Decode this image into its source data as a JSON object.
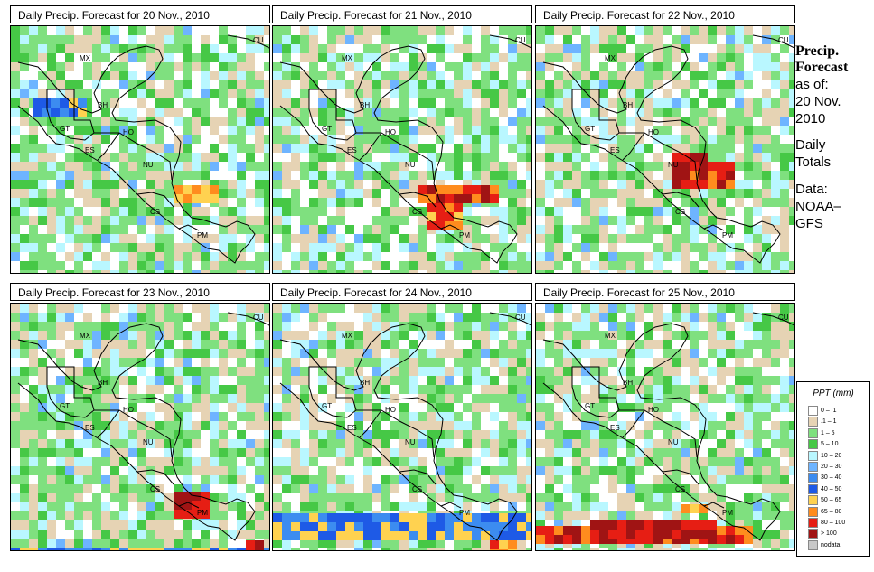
{
  "panels": [
    {
      "title": "Daily Precip. Forecast for  20 Nov., 2010"
    },
    {
      "title": "Daily Precip. Forecast for  21 Nov., 2010"
    },
    {
      "title": "Daily Precip. Forecast for  22 Nov., 2010"
    },
    {
      "title": "Daily Precip. Forecast for  23 Nov., 2010"
    },
    {
      "title": "Daily Precip. Forecast for  24 Nov., 2010"
    },
    {
      "title": "Daily Precip. Forecast for  25 Nov., 2010"
    }
  ],
  "country_labels": [
    "MX",
    "BH",
    "GT",
    "HO",
    "ES",
    "NU",
    "CS",
    "PM",
    "CU"
  ],
  "sidebar": {
    "heading_line1": "Precip.",
    "heading_line2": "Forecast",
    "asof_line1": "as of:",
    "asof_line2": "20 Nov.",
    "asof_line3": "2010",
    "daily_line1": "Daily",
    "daily_line2": "Totals",
    "data_line1": "Data:",
    "data_line2": "NOAA–",
    "data_line3": "GFS"
  },
  "legend": {
    "title": "PPT (mm)",
    "items": [
      {
        "label": "0 – .1",
        "color": "#ffffff"
      },
      {
        "label": ".1 – 1",
        "color": "#e6d3b4"
      },
      {
        "label": "1 – 5",
        "color": "#7fe07f"
      },
      {
        "label": "5 – 10",
        "color": "#46c846"
      },
      {
        "label": "10 – 20",
        "color": "#b9f7ff"
      },
      {
        "label": "20 – 30",
        "color": "#6eb4ff"
      },
      {
        "label": "30 – 40",
        "color": "#3c8cf0"
      },
      {
        "label": "40 – 50",
        "color": "#1e5ae6"
      },
      {
        "label": "50 – 65",
        "color": "#ffd250"
      },
      {
        "label": "65 – 80",
        "color": "#ff8c1e"
      },
      {
        "label": "80 – 100",
        "color": "#e61e14"
      },
      {
        "label": "> 100",
        "color": "#a01414"
      },
      {
        "label": "nodata",
        "color": "#c8c8c8"
      }
    ]
  }
}
